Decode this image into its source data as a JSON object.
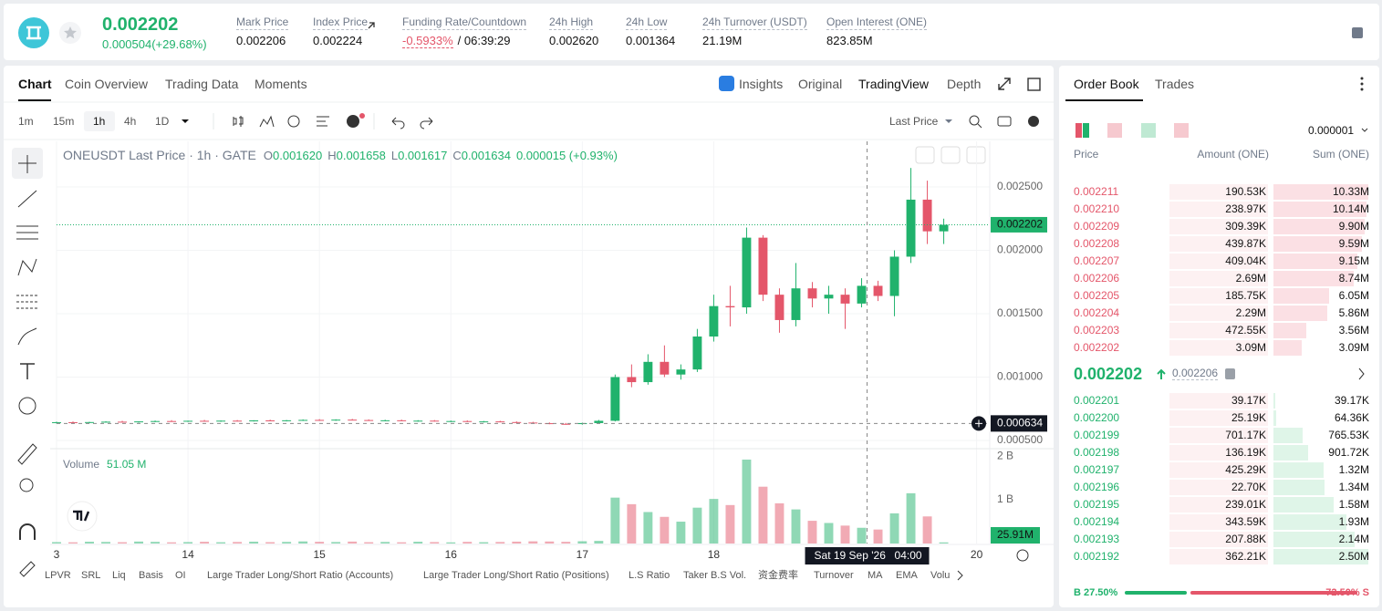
{
  "header": {
    "price": "0.002202",
    "change": "0.000504(+29.68%)",
    "stats": [
      {
        "label": "Mark Price",
        "value": "0.002206"
      },
      {
        "label": "Index Price",
        "value": "0.002224"
      },
      {
        "label": "Funding Rate/Countdown",
        "value": "-0.5933%",
        "countdown": "/ 06:39:29"
      },
      {
        "label": "24h High",
        "value": "0.002620"
      },
      {
        "label": "24h Low",
        "value": "0.001364"
      },
      {
        "label": "24h Turnover (USDT)",
        "value": "21.19M"
      },
      {
        "label": "Open Interest (ONE)",
        "value": "823.85M"
      }
    ]
  },
  "chart_panel": {
    "tabs": [
      "Chart",
      "Coin Overview",
      "Trading Data",
      "Moments"
    ],
    "right_tabs": [
      "Insights",
      "Original",
      "TradingView",
      "Depth"
    ],
    "intervals": [
      "1m",
      "15m",
      "1h",
      "4h",
      "1D"
    ],
    "price_type": "Last Price",
    "legend": {
      "title": "ONEUSDT Last Price · 1h · GATE",
      "ohlc": [
        {
          "key": "O",
          "value": "0.001620"
        },
        {
          "key": "H",
          "value": "0.001658"
        },
        {
          "key": "L",
          "value": "0.001617"
        },
        {
          "key": "C",
          "value": "0.001634"
        }
      ],
      "change": "0.000015 (+0.93%)"
    },
    "volume_legend": {
      "label": "Volume",
      "value": "51.05 M"
    }
  },
  "chart_data": {
    "type": "candlestick",
    "up_color": "#20b26c",
    "down_color": "#e4566a",
    "grid": true,
    "x": [
      13,
      13.125,
      13.25,
      13.375,
      13.5,
      13.625,
      13.75,
      13.875,
      14,
      14.125,
      14.25,
      14.375,
      14.5,
      14.625,
      14.75,
      14.875,
      15,
      15.125,
      15.25,
      15.375,
      15.5,
      15.625,
      15.75,
      15.875,
      16,
      16.125,
      16.25,
      16.375,
      16.5,
      16.625,
      16.75,
      16.875,
      17,
      17.125,
      17.25,
      17.375,
      17.5,
      17.625,
      17.75,
      17.875,
      18,
      18.125,
      18.25,
      18.375,
      18.5,
      18.625,
      18.75,
      18.875,
      19,
      19.125,
      19.25,
      19.375,
      19.5,
      19.625,
      19.75
    ],
    "open": [
      0.00064,
      0.000644,
      0.000641,
      0.000645,
      0.000648,
      0.000646,
      0.00065,
      0.000653,
      0.000651,
      0.000655,
      0.000652,
      0.000656,
      0.000654,
      0.000658,
      0.000655,
      0.000659,
      0.000662,
      0.00066,
      0.000664,
      0.000661,
      0.000657,
      0.000659,
      0.000654,
      0.000656,
      0.000651,
      0.000653,
      0.000648,
      0.00065,
      0.000645,
      0.000641,
      0.000636,
      0.000631,
      0.000629,
      0.000637,
      0.000655,
      0.001,
      0.00096,
      0.00112,
      0.00102,
      0.00106,
      0.00132,
      0.00156,
      0.00155,
      0.0021,
      0.00165,
      0.00145,
      0.0017,
      0.00162,
      0.00165,
      0.00158,
      0.00172,
      0.00164,
      0.00195,
      0.0024,
      0.00215
    ],
    "high": [
      0.000648,
      0.00065,
      0.000647,
      0.000652,
      0.000655,
      0.000651,
      0.000657,
      0.00066,
      0.000656,
      0.000662,
      0.000658,
      0.000661,
      0.00066,
      0.000664,
      0.000661,
      0.000666,
      0.000668,
      0.000667,
      0.00067,
      0.000666,
      0.000663,
      0.000664,
      0.00066,
      0.000661,
      0.000657,
      0.000658,
      0.000654,
      0.000655,
      0.00065,
      0.000647,
      0.000642,
      0.000638,
      0.00064,
      0.000662,
      0.00102,
      0.0011,
      0.00118,
      0.00125,
      0.0011,
      0.00138,
      0.00165,
      0.00172,
      0.00218,
      0.00212,
      0.0017,
      0.0019,
      0.00175,
      0.00172,
      0.0017,
      0.00178,
      0.00176,
      0.002,
      0.00265,
      0.00255,
      0.00225
    ],
    "low": [
      0.000634,
      0.000638,
      0.000636,
      0.00064,
      0.000643,
      0.00064,
      0.000645,
      0.000648,
      0.000646,
      0.00065,
      0.000647,
      0.00065,
      0.000649,
      0.000652,
      0.00065,
      0.000654,
      0.000656,
      0.000655,
      0.000658,
      0.000655,
      0.000651,
      0.000652,
      0.000648,
      0.000649,
      0.000645,
      0.000646,
      0.000642,
      0.000643,
      0.000638,
      0.000633,
      0.000628,
      0.000624,
      0.000624,
      0.000632,
      0.00065,
      0.00092,
      0.00094,
      0.001,
      0.00098,
      0.00104,
      0.00128,
      0.0014,
      0.0015,
      0.0016,
      0.00135,
      0.0014,
      0.00155,
      0.0015,
      0.00138,
      0.00155,
      0.0016,
      0.00148,
      0.0019,
      0.00205,
      0.00205
    ],
    "close": [
      0.000644,
      0.000641,
      0.000645,
      0.000648,
      0.000646,
      0.00065,
      0.000653,
      0.000651,
      0.000655,
      0.000652,
      0.000656,
      0.000654,
      0.000658,
      0.000655,
      0.000659,
      0.000662,
      0.00066,
      0.000664,
      0.000661,
      0.000657,
      0.000659,
      0.000654,
      0.000656,
      0.000651,
      0.000653,
      0.000648,
      0.00065,
      0.000645,
      0.000641,
      0.000636,
      0.000631,
      0.000629,
      0.000637,
      0.000655,
      0.001,
      0.00096,
      0.00112,
      0.00102,
      0.00106,
      0.00132,
      0.00156,
      0.00155,
      0.0021,
      0.00165,
      0.00145,
      0.0017,
      0.00162,
      0.00165,
      0.00158,
      0.00172,
      0.00164,
      0.00195,
      0.0024,
      0.00215,
      0.002202
    ],
    "volume": [
      32000000,
      28000000,
      41000000,
      36000000,
      30000000,
      45000000,
      38000000,
      27000000,
      33000000,
      40000000,
      29000000,
      35000000,
      42000000,
      31000000,
      37000000,
      48000000,
      39000000,
      34000000,
      44000000,
      30000000,
      36000000,
      28000000,
      41000000,
      33000000,
      26000000,
      38000000,
      30000000,
      35000000,
      43000000,
      50000000,
      46000000,
      39000000,
      52000000,
      60000000,
      1050000000,
      900000000,
      720000000,
      610000000,
      500000000,
      820000000,
      1020000000,
      880000000,
      1920000000,
      1300000000,
      920000000,
      780000000,
      520000000,
      470000000,
      410000000,
      360000000,
      320000000,
      690000000,
      1150000000,
      620000000,
      25910000
    ],
    "xlim": [
      13,
      20.1
    ],
    "xticks": [
      {
        "value": 13,
        "label": "3"
      },
      14,
      15,
      16,
      17,
      18,
      20
    ],
    "ylim": [
      0.000435,
      0.00286
    ],
    "yticks": [
      {
        "value": 0.0005,
        "label": "0.000500"
      },
      {
        "value": 0.001,
        "label": "0.001000"
      },
      {
        "value": 0.0015,
        "label": "0.001500"
      },
      {
        "value": 0.002,
        "label": "0.002000"
      },
      {
        "value": 0.0025,
        "label": "0.002500"
      }
    ],
    "vlim": [
      0,
      2170000000
    ],
    "vticks": [
      {
        "value": 1000000000,
        "label": "1 B"
      },
      {
        "value": 2000000000,
        "label": "2 B"
      }
    ],
    "last_price": 0.002202,
    "volume_tag": {
      "value": 25910000,
      "label": "25.91M"
    },
    "crosshair": {
      "x": 19.1667,
      "y": 0.000634,
      "date_label": "Sat 19 Sep '26",
      "time_label": "04:00"
    }
  },
  "indicator_bar": [
    "LPVR",
    "SRL",
    "Liq",
    "Basis",
    "OI",
    "Large Trader Long/Short Ratio (Accounts)",
    "Large Trader Long/Short Ratio (Positions)",
    "L.S Ratio",
    "Taker B.S Vol.",
    "资金费率",
    "Turnover",
    "MA",
    "EMA",
    "Volu"
  ],
  "order_book": {
    "tabs": [
      "Order Book",
      "Trades"
    ],
    "precision": "0.000001",
    "headers": [
      "Price",
      "Amount (ONE)",
      "Sum (ONE)"
    ],
    "asks": {
      "prices": [
        "0.002211",
        "0.002210",
        "0.002209",
        "0.002208",
        "0.002207",
        "0.002206",
        "0.002205",
        "0.002204",
        "0.002203",
        "0.002202"
      ],
      "amounts": [
        "190.53K",
        "238.97K",
        "309.39K",
        "439.87K",
        "409.04K",
        "2.69M",
        "185.75K",
        "2.29M",
        "472.55K",
        "3.09M"
      ],
      "sums": [
        10330000,
        10140000,
        9900000,
        9590000,
        9150000,
        8740000,
        6050000,
        5860000,
        3560000,
        3090000
      ],
      "sum_labels": [
        "10.33M",
        "10.14M",
        "9.90M",
        "9.59M",
        "9.15M",
        "8.74M",
        "6.05M",
        "5.86M",
        "3.56M",
        "3.09M"
      ]
    },
    "mid_price": "0.002202",
    "mark_price": "0.002206",
    "bids": {
      "prices": [
        "0.002201",
        "0.002200",
        "0.002199",
        "0.002198",
        "0.002197",
        "0.002196",
        "0.002195",
        "0.002194",
        "0.002193",
        "0.002192"
      ],
      "amounts": [
        "39.17K",
        "25.19K",
        "701.17K",
        "136.19K",
        "425.29K",
        "22.70K",
        "239.01K",
        "343.59K",
        "207.88K",
        "362.21K"
      ],
      "sums": [
        39170,
        64360,
        765530,
        901720,
        1320000,
        1340000,
        1580000,
        1930000,
        2140000,
        2500000
      ],
      "sum_labels": [
        "39.17K",
        "64.36K",
        "765.53K",
        "901.72K",
        "1.32M",
        "1.34M",
        "1.58M",
        "1.93M",
        "2.14M",
        "2.50M"
      ]
    },
    "ratio": {
      "buy": 27.5,
      "buy_label": "B 27.50%",
      "sell": 72.5,
      "sell_label": "72.50% S"
    }
  }
}
